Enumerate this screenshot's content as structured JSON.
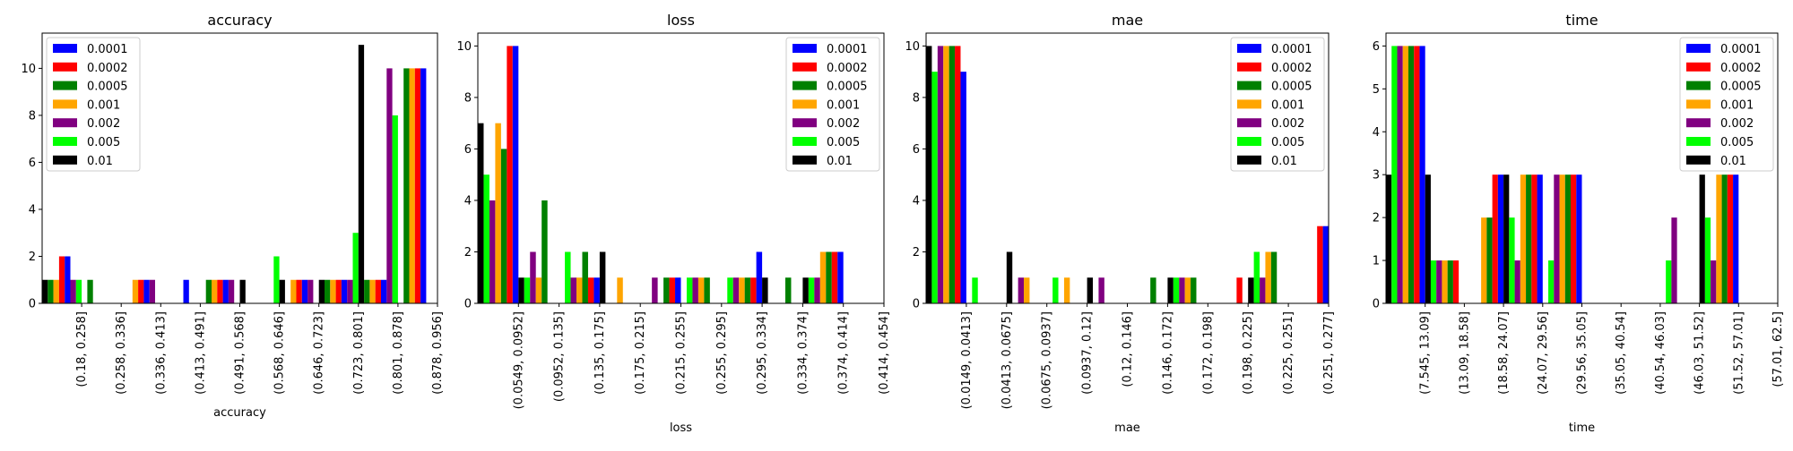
{
  "series_colors": {
    "0.0001": "#0000ff",
    "0.0002": "#ff0000",
    "0.0005": "#008000",
    "0.001": "#ffa500",
    "0.002": "#800080",
    "0.005": "#00ff00",
    "0.01": "#000000"
  },
  "chart_data": [
    {
      "type": "bar",
      "title": "accuracy",
      "xlabel": "accuracy",
      "ylabel": "",
      "ylim": [
        0,
        11.5
      ],
      "yticks": [
        0,
        2,
        4,
        6,
        8,
        10
      ],
      "legend_position": "top-left",
      "categories": [
        "(0.18, 0.258]",
        "(0.258, 0.336]",
        "(0.336, 0.413]",
        "(0.413, 0.491]",
        "(0.491, 0.568]",
        "(0.568, 0.646]",
        "(0.646, 0.723]",
        "(0.723, 0.801]",
        "(0.801, 0.878]",
        "(0.878, 0.956]"
      ],
      "series": [
        {
          "name": "0.01",
          "values": [
            1,
            0,
            0,
            0,
            0,
            1,
            1,
            1,
            11,
            0
          ]
        },
        {
          "name": "0.0005",
          "values": [
            1,
            1,
            0,
            0,
            1,
            0,
            0,
            1,
            1,
            10
          ]
        },
        {
          "name": "0.001",
          "values": [
            1,
            0,
            1,
            0,
            1,
            0,
            1,
            1,
            1,
            10
          ]
        },
        {
          "name": "0.0002",
          "values": [
            2,
            0,
            1,
            0,
            1,
            0,
            1,
            1,
            1,
            10
          ]
        },
        {
          "name": "0.0001",
          "values": [
            2,
            0,
            1,
            1,
            1,
            0,
            1,
            1,
            1,
            10
          ]
        },
        {
          "name": "0.002",
          "values": [
            1,
            0,
            1,
            0,
            1,
            0,
            1,
            1,
            10,
            0
          ]
        },
        {
          "name": "0.005",
          "values": [
            1,
            0,
            0,
            0,
            0,
            2,
            0,
            3,
            8,
            0
          ]
        }
      ],
      "legend_order": [
        "0.0001",
        "0.0002",
        "0.0005",
        "0.001",
        "0.002",
        "0.005",
        "0.01"
      ]
    },
    {
      "type": "bar",
      "title": "loss",
      "xlabel": "loss",
      "ylabel": "",
      "ylim": [
        0,
        10.5
      ],
      "yticks": [
        0,
        2,
        4,
        6,
        8,
        10
      ],
      "legend_position": "top-right",
      "categories": [
        "(0.0549, 0.0952]",
        "(0.0952, 0.135]",
        "(0.135, 0.175]",
        "(0.175, 0.215]",
        "(0.215, 0.255]",
        "(0.255, 0.295]",
        "(0.295, 0.334]",
        "(0.334, 0.374]",
        "(0.374, 0.414]",
        "(0.414, 0.454]"
      ],
      "series": [
        {
          "name": "0.01",
          "values": [
            7,
            1,
            0,
            2,
            0,
            0,
            0,
            1,
            1,
            0
          ]
        },
        {
          "name": "0.005",
          "values": [
            5,
            1,
            2,
            0,
            0,
            1,
            1,
            0,
            1,
            0
          ]
        },
        {
          "name": "0.002",
          "values": [
            4,
            2,
            1,
            0,
            1,
            1,
            1,
            0,
            1,
            0
          ]
        },
        {
          "name": "0.001",
          "values": [
            7,
            1,
            1,
            1,
            0,
            1,
            1,
            0,
            2,
            0
          ]
        },
        {
          "name": "0.0005",
          "values": [
            6,
            4,
            2,
            0,
            1,
            1,
            1,
            1,
            2,
            0
          ]
        },
        {
          "name": "0.0002",
          "values": [
            10,
            0,
            1,
            0,
            1,
            0,
            1,
            0,
            2,
            0
          ]
        },
        {
          "name": "0.0001",
          "values": [
            10,
            0,
            1,
            0,
            1,
            0,
            2,
            0,
            2,
            0
          ]
        }
      ],
      "legend_order": [
        "0.0001",
        "0.0002",
        "0.0005",
        "0.001",
        "0.002",
        "0.005",
        "0.01"
      ]
    },
    {
      "type": "bar",
      "title": "mae",
      "xlabel": "mae",
      "ylabel": "",
      "ylim": [
        0,
        10.5
      ],
      "yticks": [
        0,
        2,
        4,
        6,
        8,
        10
      ],
      "legend_position": "top-right",
      "categories": [
        "(0.0149, 0.0413]",
        "(0.0413, 0.0675]",
        "(0.0675, 0.0937]",
        "(0.0937, 0.12]",
        "(0.12, 0.146]",
        "(0.146, 0.172]",
        "(0.172, 0.198]",
        "(0.198, 0.225]",
        "(0.225, 0.251]",
        "(0.251, 0.277]"
      ],
      "series": [
        {
          "name": "0.01",
          "values": [
            10,
            0,
            2,
            0,
            1,
            0,
            1,
            0,
            1,
            0
          ]
        },
        {
          "name": "0.005",
          "values": [
            9,
            1,
            0,
            1,
            0,
            0,
            1,
            0,
            2,
            0
          ]
        },
        {
          "name": "0.002",
          "values": [
            10,
            0,
            1,
            0,
            1,
            0,
            1,
            0,
            1,
            0
          ]
        },
        {
          "name": "0.001",
          "values": [
            10,
            0,
            1,
            1,
            0,
            0,
            1,
            0,
            2,
            0
          ]
        },
        {
          "name": "0.0005",
          "values": [
            10,
            0,
            0,
            0,
            0,
            1,
            1,
            0,
            2,
            0
          ]
        },
        {
          "name": "0.0002",
          "values": [
            10,
            0,
            0,
            0,
            0,
            0,
            0,
            1,
            0,
            3
          ]
        },
        {
          "name": "0.0001",
          "values": [
            9,
            0,
            0,
            0,
            0,
            0,
            0,
            0,
            0,
            3
          ]
        }
      ],
      "legend_order": [
        "0.0001",
        "0.0002",
        "0.0005",
        "0.001",
        "0.002",
        "0.005",
        "0.01"
      ]
    },
    {
      "type": "bar",
      "title": "time",
      "xlabel": "time",
      "ylabel": "",
      "ylim": [
        0,
        6.3
      ],
      "yticks": [
        0,
        1,
        2,
        3,
        4,
        5,
        6
      ],
      "legend_position": "top-right",
      "categories": [
        "(7.545, 13.09]",
        "(13.09, 18.58]",
        "(18.58, 24.07]",
        "(24.07, 29.56]",
        "(29.56, 35.05]",
        "(35.05, 40.54]",
        "(40.54, 46.03]",
        "(46.03, 51.52]",
        "(51.52, 57.01]",
        "(57.01, 62.5]"
      ],
      "series": [
        {
          "name": "0.01",
          "values": [
            3,
            3,
            0,
            3,
            0,
            0,
            0,
            0,
            3,
            0
          ]
        },
        {
          "name": "0.005",
          "values": [
            6,
            1,
            0,
            2,
            1,
            0,
            0,
            1,
            2,
            0
          ]
        },
        {
          "name": "0.002",
          "values": [
            6,
            1,
            0,
            1,
            3,
            0,
            0,
            2,
            1,
            0
          ]
        },
        {
          "name": "0.001",
          "values": [
            6,
            1,
            2,
            3,
            3,
            0,
            0,
            0,
            3,
            0
          ]
        },
        {
          "name": "0.0005",
          "values": [
            6,
            1,
            2,
            3,
            3,
            0,
            0,
            0,
            3,
            0
          ]
        },
        {
          "name": "0.0002",
          "values": [
            6,
            1,
            3,
            3,
            3,
            0,
            0,
            0,
            3,
            0
          ]
        },
        {
          "name": "0.0001",
          "values": [
            6,
            0,
            3,
            3,
            3,
            0,
            0,
            0,
            3,
            0
          ]
        }
      ],
      "legend_order": [
        "0.0001",
        "0.0002",
        "0.0005",
        "0.001",
        "0.002",
        "0.005",
        "0.01"
      ]
    }
  ]
}
